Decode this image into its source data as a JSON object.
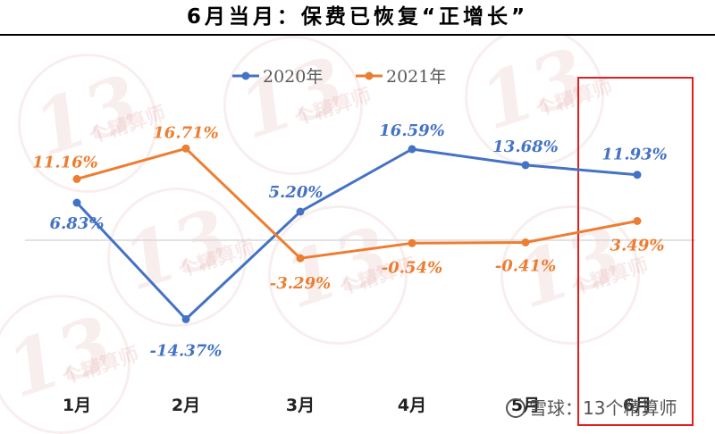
{
  "chart_data": {
    "type": "line",
    "title": "6月当月：保费已恢复“正增长”",
    "categories": [
      "1月",
      "2月",
      "3月",
      "4月",
      "5月",
      "6月"
    ],
    "series": [
      {
        "name": "2020年",
        "color": "#4472C4",
        "values": [
          6.83,
          -14.37,
          5.2,
          16.59,
          13.68,
          11.93
        ],
        "labels": [
          "6.83%",
          "-14.37%",
          "5.20%",
          "16.59%",
          "13.68%",
          "11.93%"
        ]
      },
      {
        "name": "2021年",
        "color": "#ED7D31",
        "values": [
          11.16,
          16.71,
          -3.29,
          -0.54,
          -0.41,
          3.49
        ],
        "labels": [
          "11.16%",
          "16.71%",
          "-3.29%",
          "-0.54%",
          "-0.41%",
          "3.49%"
        ]
      }
    ],
    "ylim": [
      -20,
      20
    ],
    "xlabel": "",
    "ylabel": "",
    "grid": false,
    "legend": "top-center",
    "highlight": {
      "category": "6月",
      "color": "#E02020"
    }
  },
  "watermark": {
    "stamp_number": "13",
    "stamp_text": "个精算师",
    "footer_text": "雪球：13个精算师"
  }
}
